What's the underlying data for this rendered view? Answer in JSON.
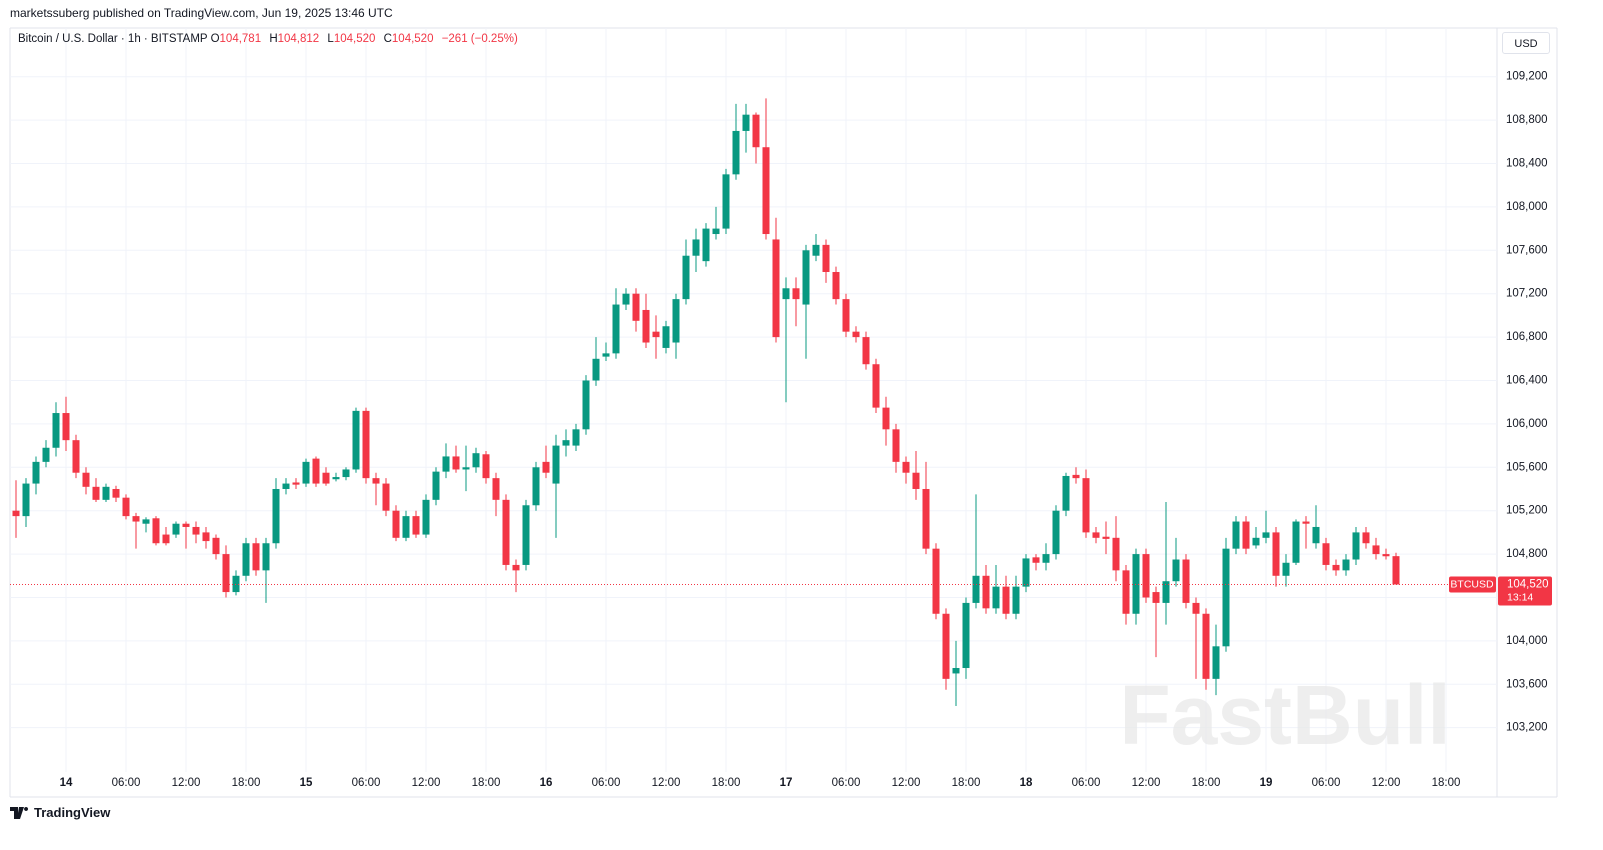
{
  "header": {
    "published": "marketssuberg published on TradingView.com, Jun 19, 2025 13:46 UTC"
  },
  "ohlc_legend": {
    "o_label": "O",
    "o_value": "104,781",
    "h_label": "H",
    "h_value": "104,812",
    "l_label": "L",
    "l_value": "104,520",
    "c_label": "C",
    "c_value": "104,520",
    "change": "−261 (−0.25%)"
  },
  "currency": "USD",
  "footer": {
    "brand": "TradingView"
  },
  "watermark": "FastBull",
  "chart_data": {
    "type": "candlestick",
    "title": "Bitcoin / U.S. Dollar · 1h · BITSTAMP",
    "up_color": "#089981",
    "down_color": "#f23645",
    "grid": true,
    "x": [
      -5,
      -4,
      -3,
      -2,
      -1,
      0,
      1,
      2,
      3,
      4,
      5,
      6,
      7,
      8,
      9,
      10,
      11,
      12,
      13,
      14,
      15,
      16,
      17,
      18,
      19,
      20,
      21,
      22,
      23,
      24,
      25,
      26,
      27,
      28,
      29,
      30,
      31,
      32,
      33,
      34,
      35,
      36,
      37,
      38,
      39,
      40,
      41,
      42,
      43,
      44,
      45,
      46,
      47,
      48,
      49,
      50,
      51,
      52,
      53,
      54,
      55,
      56,
      57,
      58,
      59,
      60,
      61,
      62,
      63,
      64,
      65,
      66,
      67,
      68,
      69,
      70,
      71,
      72,
      73,
      74,
      75,
      76,
      77,
      78,
      79,
      80,
      81,
      82,
      83,
      84,
      85,
      86,
      87,
      88,
      89,
      90,
      91,
      92,
      93,
      94,
      95,
      96,
      97,
      98,
      99,
      100,
      101,
      102,
      103,
      104,
      105,
      106,
      107,
      108,
      109,
      110,
      111,
      112,
      113,
      114,
      115,
      116,
      117,
      118,
      119,
      120,
      121,
      122,
      123,
      124,
      125,
      126,
      127,
      128,
      129,
      130,
      131,
      132,
      133
    ],
    "open": [
      105200,
      105150,
      105450,
      105650,
      105780,
      106100,
      105850,
      105550,
      105420,
      105300,
      105400,
      105320,
      105150,
      105080,
      105130,
      104980,
      104980,
      105080,
      105050,
      105000,
      104950,
      104800,
      104450,
      104600,
      104900,
      104650,
      104900,
      105400,
      105460,
      105450,
      105680,
      105550,
      105490,
      105510,
      105580,
      106120,
      105500,
      105450,
      105200,
      104950,
      105150,
      104980,
      105300,
      105560,
      105700,
      105580,
      105600,
      105720,
      105500,
      105300,
      104700,
      104700,
      105250,
      105650,
      105450,
      105800,
      105800,
      105950,
      106400,
      106620,
      106650,
      107100,
      107200,
      107050,
      106850,
      106700,
      106750,
      107150,
      107550,
      107500,
      107750,
      107800,
      108300,
      108700,
      108850,
      108550,
      107700,
      107150,
      107250,
      107100,
      107550,
      107650,
      107400,
      107150,
      106850,
      106800,
      106550,
      106150,
      105950,
      105650,
      105550,
      105400,
      104850,
      104250,
      103700,
      103750,
      104350,
      104600,
      104300,
      104500,
      104250,
      104500,
      104770,
      104720,
      104800,
      105200,
      105530,
      105500,
      105000,
      104960,
      104950,
      104650,
      104250,
      104800,
      104450,
      104350,
      104550,
      104750,
      104350,
      104250,
      103650,
      103950,
      104850,
      105100,
      104880,
      104950,
      105000,
      104600,
      104720,
      105100,
      104900,
      104900,
      104700,
      104650,
      104750,
      105000,
      104880,
      104800,
      104781
    ],
    "high": [
      105480,
      105500,
      105700,
      105850,
      106200,
      106250,
      105900,
      105600,
      105500,
      105450,
      105430,
      105350,
      105180,
      105140,
      105150,
      105050,
      105100,
      105100,
      105100,
      105050,
      104980,
      104880,
      104650,
      104950,
      104950,
      104950,
      105500,
      105500,
      105500,
      105680,
      105700,
      105600,
      105550,
      105600,
      106150,
      106150,
      105550,
      105500,
      105250,
      105200,
      105200,
      105350,
      105600,
      105820,
      105800,
      105800,
      105780,
      105750,
      105550,
      105350,
      104750,
      105300,
      105650,
      105800,
      105900,
      105950,
      106000,
      106450,
      106800,
      106750,
      107250,
      107250,
      107250,
      107200,
      107000,
      106950,
      107200,
      107700,
      107800,
      107850,
      108000,
      108350,
      108950,
      108950,
      108870,
      109000,
      107900,
      107350,
      107350,
      107650,
      107750,
      107700,
      107450,
      107200,
      106900,
      106850,
      106600,
      106250,
      106000,
      105700,
      105750,
      105650,
      104900,
      104300,
      104000,
      104400,
      105350,
      104700,
      104700,
      104600,
      104600,
      104800,
      104800,
      104900,
      105250,
      105550,
      105600,
      105580,
      105050,
      105100,
      105150,
      104700,
      104850,
      104850,
      104500,
      105280,
      104950,
      104800,
      104400,
      104300,
      104150,
      104950,
      105150,
      105150,
      105050,
      105200,
      105050,
      104800,
      105120,
      105150,
      105250,
      104950,
      104750,
      104800,
      105050,
      105050,
      104950,
      104850,
      104812
    ],
    "low": [
      104950,
      105050,
      105350,
      105600,
      105700,
      105750,
      105500,
      105350,
      105280,
      105280,
      105280,
      105120,
      104850,
      105000,
      104880,
      104880,
      104950,
      104850,
      104900,
      104850,
      104750,
      104400,
      104420,
      104550,
      104600,
      104350,
      104850,
      105350,
      105400,
      105420,
      105420,
      105430,
      105470,
      105480,
      105550,
      105450,
      105250,
      105150,
      104920,
      104920,
      104950,
      104950,
      105250,
      105500,
      105550,
      105380,
      105550,
      105450,
      105150,
      104650,
      104450,
      104650,
      105200,
      105500,
      104950,
      105700,
      105750,
      105900,
      106350,
      106580,
      106600,
      107050,
      106850,
      106700,
      106600,
      106650,
      106600,
      107100,
      107400,
      107450,
      107700,
      107750,
      108250,
      108500,
      108400,
      107700,
      106750,
      106200,
      106900,
      106600,
      107500,
      107300,
      107100,
      106800,
      106750,
      106500,
      106100,
      105800,
      105550,
      105450,
      105300,
      104800,
      104200,
      103550,
      103400,
      103650,
      104300,
      104250,
      104250,
      104200,
      104200,
      104450,
      104650,
      104650,
      104750,
      105150,
      105450,
      104950,
      104900,
      104800,
      104550,
      104150,
      104150,
      104350,
      103850,
      104150,
      104500,
      104300,
      103650,
      103550,
      103500,
      103900,
      104800,
      104800,
      104850,
      104900,
      104500,
      104500,
      104700,
      104850,
      104850,
      104650,
      104600,
      104600,
      104700,
      104850,
      104750,
      104750,
      104520
    ],
    "close": [
      105150,
      105450,
      105650,
      105780,
      106100,
      105850,
      105550,
      105420,
      105300,
      105420,
      105320,
      105150,
      105100,
      105120,
      104900,
      104900,
      105080,
      105050,
      104980,
      104920,
      104800,
      104450,
      104600,
      104900,
      104650,
      104900,
      105400,
      105450,
      105440,
      105650,
      105450,
      105450,
      105510,
      105580,
      106120,
      105500,
      105450,
      105200,
      104950,
      105150,
      104980,
      105300,
      105560,
      105700,
      105580,
      105600,
      105730,
      105500,
      105300,
      104700,
      104650,
      105250,
      105600,
      105550,
      105800,
      105850,
      105950,
      106400,
      106600,
      106650,
      107100,
      107200,
      106950,
      106750,
      106800,
      106900,
      107150,
      107550,
      107700,
      107800,
      107800,
      108300,
      108700,
      108850,
      108550,
      107750,
      106800,
      107250,
      107150,
      107600,
      107650,
      107400,
      107150,
      106850,
      106800,
      106550,
      106150,
      105950,
      105650,
      105550,
      105400,
      104850,
      104250,
      103650,
      103750,
      104350,
      104600,
      104300,
      104500,
      104250,
      104500,
      104760,
      104720,
      104800,
      105200,
      105520,
      105500,
      105000,
      104950,
      104940,
      104650,
      104250,
      104800,
      104400,
      104350,
      104550,
      104750,
      104350,
      104250,
      103650,
      103950,
      104850,
      105100,
      104850,
      104950,
      105000,
      104600,
      104720,
      105100,
      105080,
      105050,
      104700,
      104650,
      104750,
      105000,
      104900,
      104800,
      104780,
      104520
    ],
    "xlim": [
      -5.6,
      143.1
    ],
    "xticks": [
      {
        "value": 0,
        "label": "14"
      },
      {
        "value": 6,
        "label": "06:00"
      },
      {
        "value": 12,
        "label": "12:00"
      },
      {
        "value": 18,
        "label": "18:00"
      },
      {
        "value": 24,
        "label": "15"
      },
      {
        "value": 30,
        "label": "06:00"
      },
      {
        "value": 36,
        "label": "12:00"
      },
      {
        "value": 42,
        "label": "18:00"
      },
      {
        "value": 48,
        "label": "16"
      },
      {
        "value": 54,
        "label": "06:00"
      },
      {
        "value": 60,
        "label": "12:00"
      },
      {
        "value": 66,
        "label": "18:00"
      },
      {
        "value": 72,
        "label": "17"
      },
      {
        "value": 78,
        "label": "06:00"
      },
      {
        "value": 84,
        "label": "12:00"
      },
      {
        "value": 90,
        "label": "18:00"
      },
      {
        "value": 96,
        "label": "18"
      },
      {
        "value": 102,
        "label": "06:00"
      },
      {
        "value": 108,
        "label": "12:00"
      },
      {
        "value": 114,
        "label": "18:00"
      },
      {
        "value": 120,
        "label": "19"
      },
      {
        "value": 126,
        "label": "06:00"
      },
      {
        "value": 132,
        "label": "12:00"
      },
      {
        "value": 138,
        "label": "18:00"
      }
    ],
    "ylim": [
      102810,
      109400
    ],
    "yticks": [
      {
        "value": 103200,
        "label": "103,200"
      },
      {
        "value": 103600,
        "label": "103,600"
      },
      {
        "value": 104000,
        "label": "104,000"
      },
      {
        "value": 104400,
        "label": "104,400"
      },
      {
        "value": 104800,
        "label": "104,800"
      },
      {
        "value": 105200,
        "label": "105,200"
      },
      {
        "value": 105600,
        "label": "105,600"
      },
      {
        "value": 106000,
        "label": "106,000"
      },
      {
        "value": 106400,
        "label": "106,400"
      },
      {
        "value": 106800,
        "label": "106,800"
      },
      {
        "value": 107200,
        "label": "107,200"
      },
      {
        "value": 107600,
        "label": "107,600"
      },
      {
        "value": 108000,
        "label": "108,000"
      },
      {
        "value": 108400,
        "label": "108,400"
      },
      {
        "value": 108800,
        "label": "108,800"
      },
      {
        "value": 109200,
        "label": "109,200"
      }
    ],
    "last_price": {
      "value": 104520,
      "label": "104,520",
      "symbol": "BTCUSD",
      "countdown": "13:14"
    }
  }
}
